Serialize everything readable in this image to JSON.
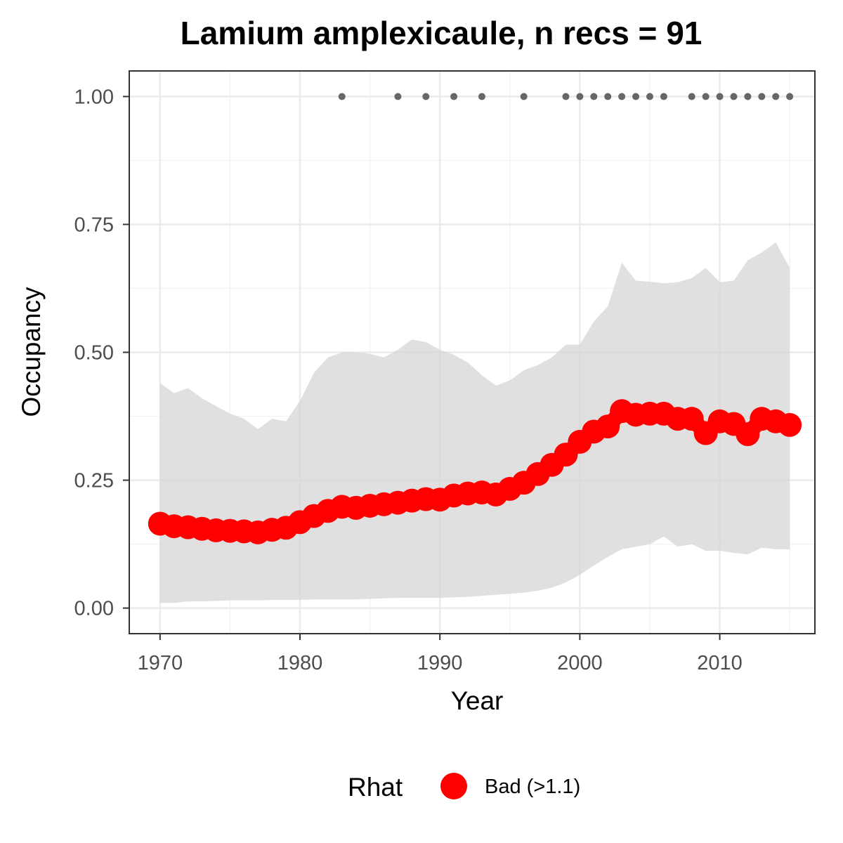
{
  "chart_data": {
    "type": "line",
    "title": "Lamium amplexicaule, n recs = 91",
    "xlabel": "Year",
    "ylabel": "Occupancy",
    "xlim": [
      1967.8,
      2016.8
    ],
    "ylim": [
      -0.05,
      1.05
    ],
    "x_ticks": [
      1970,
      1980,
      1990,
      2000,
      2010
    ],
    "x_tick_labels": [
      "1970",
      "1980",
      "1990",
      "2000",
      "2010"
    ],
    "y_ticks": [
      0,
      0.25,
      0.5,
      0.75,
      1.0
    ],
    "y_tick_labels": [
      "0.00",
      "0.25",
      "0.50",
      "0.75",
      "1.00"
    ],
    "grid": true,
    "legend": {
      "position": "bottom",
      "title": "Rhat",
      "entries": [
        {
          "label": "Bad (>1.1)",
          "color": "#ff0000"
        }
      ]
    },
    "colors": {
      "line": "#ff0000",
      "ribbon": "#d6d6d6",
      "records": "#666666"
    },
    "series": [
      {
        "type": "line",
        "x": [
          1970,
          1971,
          1972,
          1973,
          1974,
          1975,
          1976,
          1977,
          1978,
          1979,
          1980,
          1981,
          1982,
          1983,
          1984,
          1985,
          1986,
          1987,
          1988,
          1989,
          1990,
          1991,
          1992,
          1993,
          1994,
          1995,
          1996,
          1997,
          1998,
          1999,
          2000,
          2001,
          2002,
          2003,
          2004,
          2005,
          2006,
          2007,
          2008,
          2009,
          2010,
          2011,
          2012,
          2013,
          2014,
          2015
        ],
        "y": [
          0.165,
          0.16,
          0.158,
          0.155,
          0.152,
          0.151,
          0.15,
          0.148,
          0.153,
          0.157,
          0.168,
          0.18,
          0.19,
          0.198,
          0.196,
          0.2,
          0.203,
          0.206,
          0.21,
          0.213,
          0.212,
          0.22,
          0.224,
          0.226,
          0.222,
          0.233,
          0.245,
          0.262,
          0.28,
          0.3,
          0.325,
          0.345,
          0.355,
          0.385,
          0.378,
          0.38,
          0.38,
          0.37,
          0.37,
          0.342,
          0.365,
          0.36,
          0.34,
          0.37,
          0.365,
          0.358
        ],
        "lower": [
          0.01,
          0.01,
          0.013,
          0.013,
          0.014,
          0.015,
          0.015,
          0.015,
          0.016,
          0.016,
          0.016,
          0.017,
          0.017,
          0.017,
          0.017,
          0.018,
          0.019,
          0.02,
          0.02,
          0.02,
          0.02,
          0.021,
          0.022,
          0.024,
          0.026,
          0.028,
          0.03,
          0.034,
          0.04,
          0.05,
          0.065,
          0.083,
          0.1,
          0.115,
          0.12,
          0.125,
          0.14,
          0.12,
          0.125,
          0.112,
          0.112,
          0.108,
          0.105,
          0.118,
          0.115,
          0.115
        ],
        "upper": [
          0.44,
          0.42,
          0.43,
          0.41,
          0.395,
          0.38,
          0.37,
          0.35,
          0.37,
          0.365,
          0.405,
          0.46,
          0.49,
          0.5,
          0.5,
          0.497,
          0.49,
          0.505,
          0.525,
          0.52,
          0.505,
          0.495,
          0.48,
          0.455,
          0.435,
          0.445,
          0.465,
          0.475,
          0.49,
          0.515,
          0.515,
          0.56,
          0.59,
          0.675,
          0.64,
          0.638,
          0.635,
          0.637,
          0.645,
          0.665,
          0.637,
          0.64,
          0.68,
          0.695,
          0.715,
          0.665
        ]
      },
      {
        "type": "scatter",
        "x": [
          1983,
          1987,
          1989,
          1991,
          1993,
          1996,
          1999,
          2000,
          2001,
          2002,
          2003,
          2004,
          2005,
          2006,
          2008,
          2009,
          2010,
          2011,
          2012,
          2013,
          2014,
          2015
        ],
        "y": [
          1,
          1,
          1,
          1,
          1,
          1,
          1,
          1,
          1,
          1,
          1,
          1,
          1,
          1,
          1,
          1,
          1,
          1,
          1,
          1,
          1,
          1
        ]
      }
    ]
  }
}
